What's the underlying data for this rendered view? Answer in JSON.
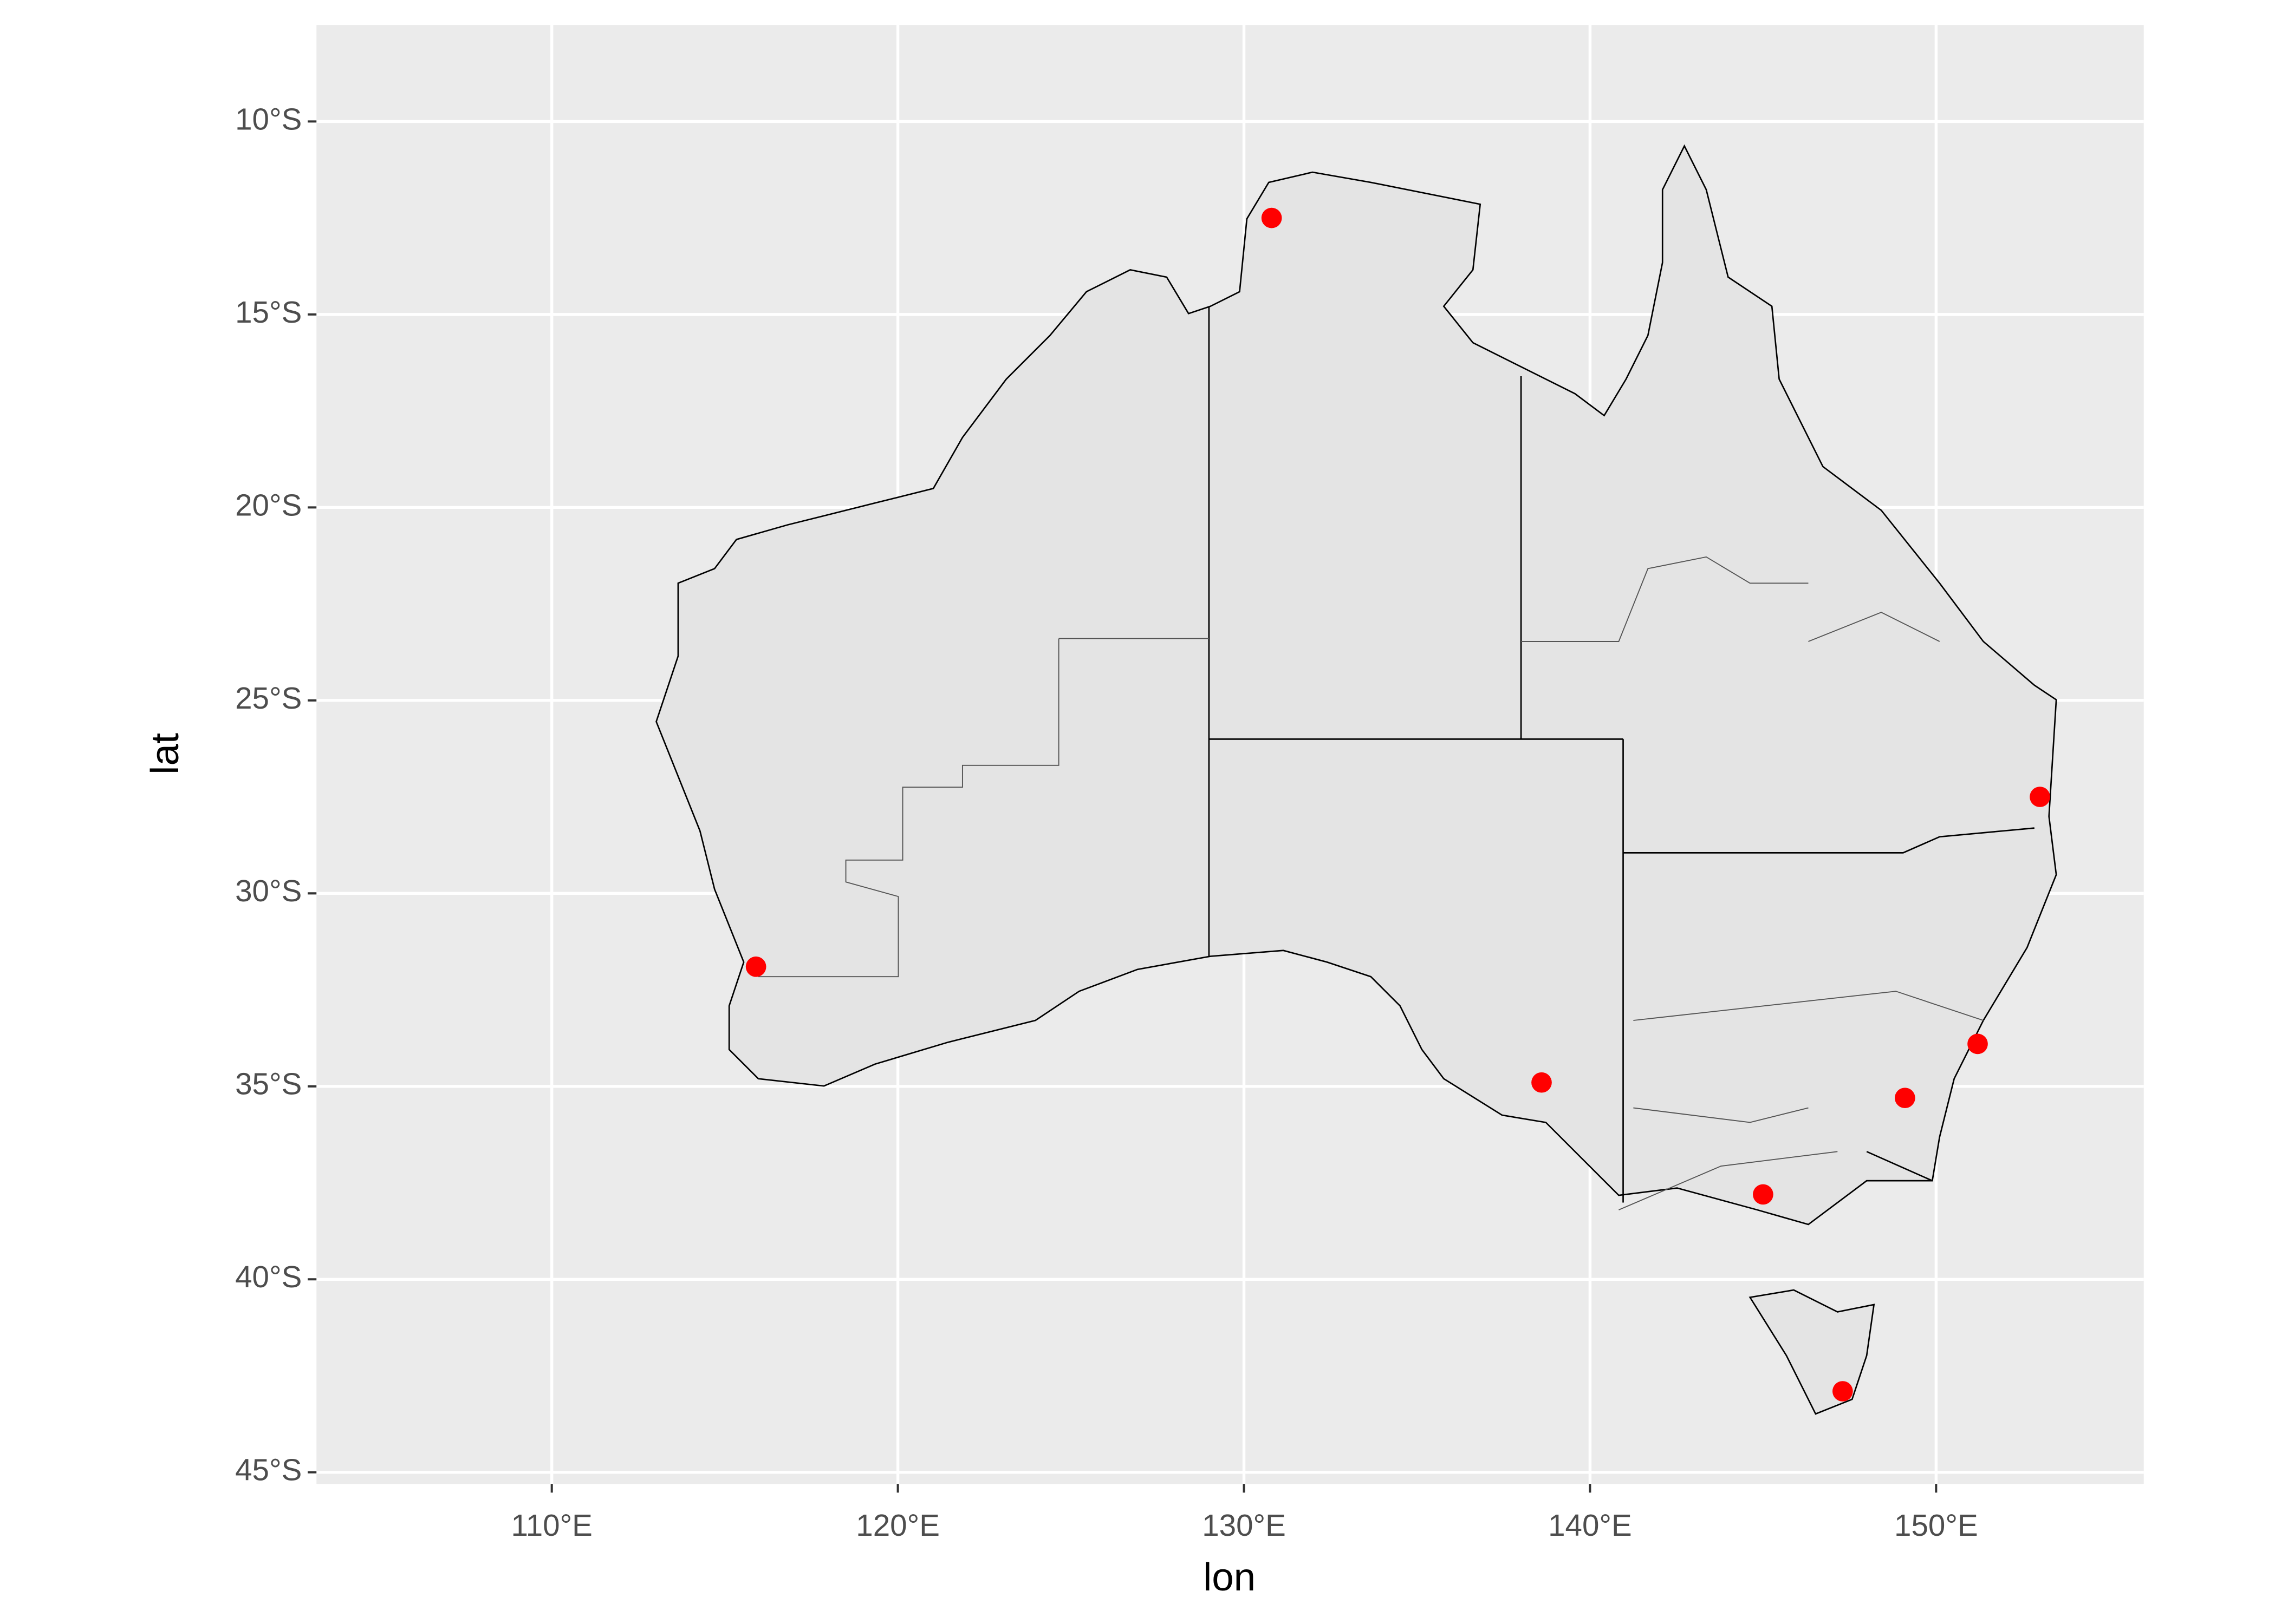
{
  "chart_data": {
    "type": "scatter",
    "x_label": "lon",
    "y_label": "lat",
    "x": [
      130.8,
      115.9,
      153.0,
      151.2,
      149.1,
      145.0,
      147.3,
      138.6
    ],
    "values": [
      -12.5,
      -31.9,
      -27.5,
      -33.9,
      -35.3,
      -37.8,
      -42.9,
      -34.9
    ],
    "color": "#ff0000",
    "xlim": [
      103.2,
      156.0
    ],
    "ylim": [
      -45.3,
      -7.5
    ],
    "xticks": [
      {
        "value": 110,
        "label": "110°E"
      },
      {
        "value": 120,
        "label": "120°E"
      },
      {
        "value": 130,
        "label": "130°E"
      },
      {
        "value": 140,
        "label": "140°E"
      },
      {
        "value": 150,
        "label": "150°E"
      }
    ],
    "yticks": [
      {
        "value": -10,
        "label": "10°S"
      },
      {
        "value": -15,
        "label": "15°S"
      },
      {
        "value": -20,
        "label": "20°S"
      },
      {
        "value": -25,
        "label": "25°S"
      },
      {
        "value": -30,
        "label": "30°S"
      },
      {
        "value": -35,
        "label": "35°S"
      },
      {
        "value": -40,
        "label": "40°S"
      },
      {
        "value": -45,
        "label": "45°S"
      }
    ],
    "grid": true
  }
}
